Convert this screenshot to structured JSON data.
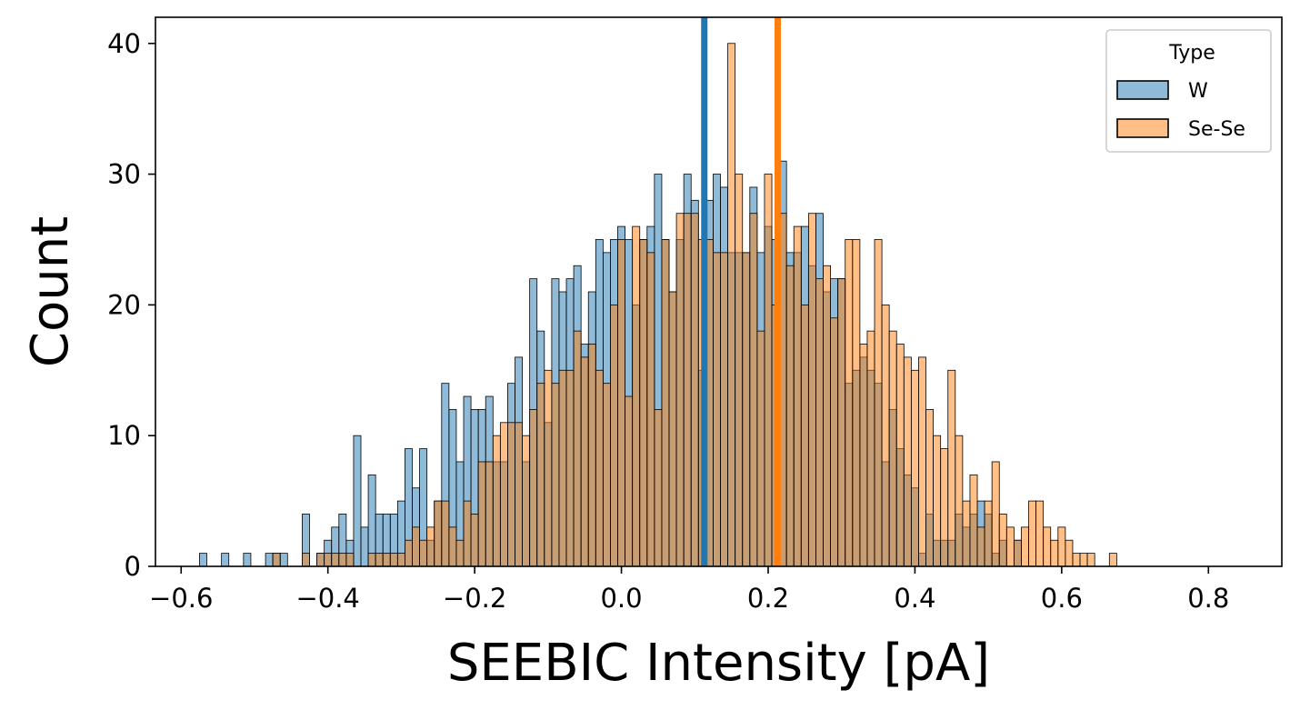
{
  "chart_data": {
    "type": "histogram",
    "xlabel": "SEEBIC Intensity [pA]",
    "ylabel": "Count",
    "xlim": [
      -0.635,
      0.9
    ],
    "ylim": [
      0,
      42
    ],
    "x_ticks": [
      -0.6,
      -0.4,
      -0.2,
      0.0,
      0.2,
      0.4,
      0.6,
      0.8
    ],
    "x_tick_labels": [
      "−0.6",
      "−0.4",
      "−0.2",
      "0.0",
      "0.2",
      "0.4",
      "0.6",
      "0.8"
    ],
    "y_ticks": [
      0,
      10,
      20,
      30,
      40
    ],
    "y_tick_labels": [
      "0",
      "10",
      "20",
      "30",
      "40"
    ],
    "grid": false,
    "bin_start": -0.575,
    "bin_width": 0.01,
    "legend": {
      "title": "Type",
      "placement": "top-right"
    },
    "series": [
      {
        "name": "W",
        "color": "#1f77b4",
        "bar_opacity": 0.5,
        "mean_line": 0.113,
        "counts": [
          1,
          0,
          0,
          1,
          0,
          0,
          1,
          0,
          0,
          1,
          1,
          1,
          0,
          0,
          4,
          0,
          1,
          2,
          3,
          4,
          2,
          10,
          3,
          7,
          4,
          4,
          4,
          5,
          9,
          6,
          9,
          2,
          5,
          14,
          12,
          8,
          13,
          12,
          12,
          13,
          8,
          8,
          14,
          16,
          8,
          22,
          18,
          11,
          22,
          21,
          22,
          23,
          17,
          21,
          25,
          24,
          25,
          26,
          25,
          20,
          25,
          26,
          30,
          25,
          21,
          25,
          30,
          28,
          15,
          28,
          30,
          29,
          24,
          24,
          24,
          29,
          24,
          26,
          25,
          31,
          24,
          24,
          26,
          23,
          27,
          21,
          22,
          22,
          14,
          15,
          16,
          15,
          14,
          8,
          12,
          9,
          7,
          6,
          1,
          4,
          2,
          2,
          2,
          4,
          3,
          4,
          5,
          4,
          1,
          2,
          0,
          2,
          0,
          0,
          0,
          0,
          0,
          0,
          0,
          0,
          0,
          0,
          0,
          0,
          0,
          0,
          0,
          0,
          0,
          0,
          0,
          0,
          0,
          0,
          0,
          0,
          0,
          0,
          0,
          0,
          0,
          0
        ]
      },
      {
        "name": "Se-Se",
        "color": "#ff7f0e",
        "bar_opacity": 0.5,
        "mean_line": 0.213,
        "counts": [
          0,
          0,
          0,
          0,
          0,
          0,
          0,
          0,
          0,
          0,
          1,
          0,
          0,
          0,
          1,
          0,
          1,
          1,
          1,
          1,
          1,
          0,
          0,
          1,
          1,
          1,
          1,
          1,
          2,
          3,
          2,
          3,
          5,
          5,
          3,
          2,
          5,
          4,
          8,
          8,
          10,
          11,
          11,
          11,
          10,
          12,
          14,
          15,
          14,
          15,
          15,
          18,
          16,
          17,
          15,
          14,
          20,
          25,
          13,
          26,
          25,
          24,
          12,
          25,
          21,
          27,
          27,
          27,
          25,
          25,
          24,
          24,
          40,
          30,
          24,
          27,
          18,
          30,
          20,
          27,
          23,
          26,
          20,
          27,
          22,
          23,
          19,
          22,
          25,
          25,
          17,
          18,
          25,
          20,
          18,
          17,
          16,
          15,
          16,
          12,
          10,
          9,
          15,
          10,
          5,
          7,
          3,
          5,
          8,
          4,
          3,
          2,
          3,
          5,
          5,
          3,
          2,
          3,
          2,
          1,
          1,
          1,
          0,
          0,
          1,
          0,
          0,
          0,
          0,
          0,
          0,
          0,
          0,
          0,
          0,
          0,
          0,
          0,
          0,
          0,
          0,
          0,
          0,
          0,
          0,
          0,
          0
        ]
      }
    ],
    "overlap_color": "#8f9b9f"
  }
}
